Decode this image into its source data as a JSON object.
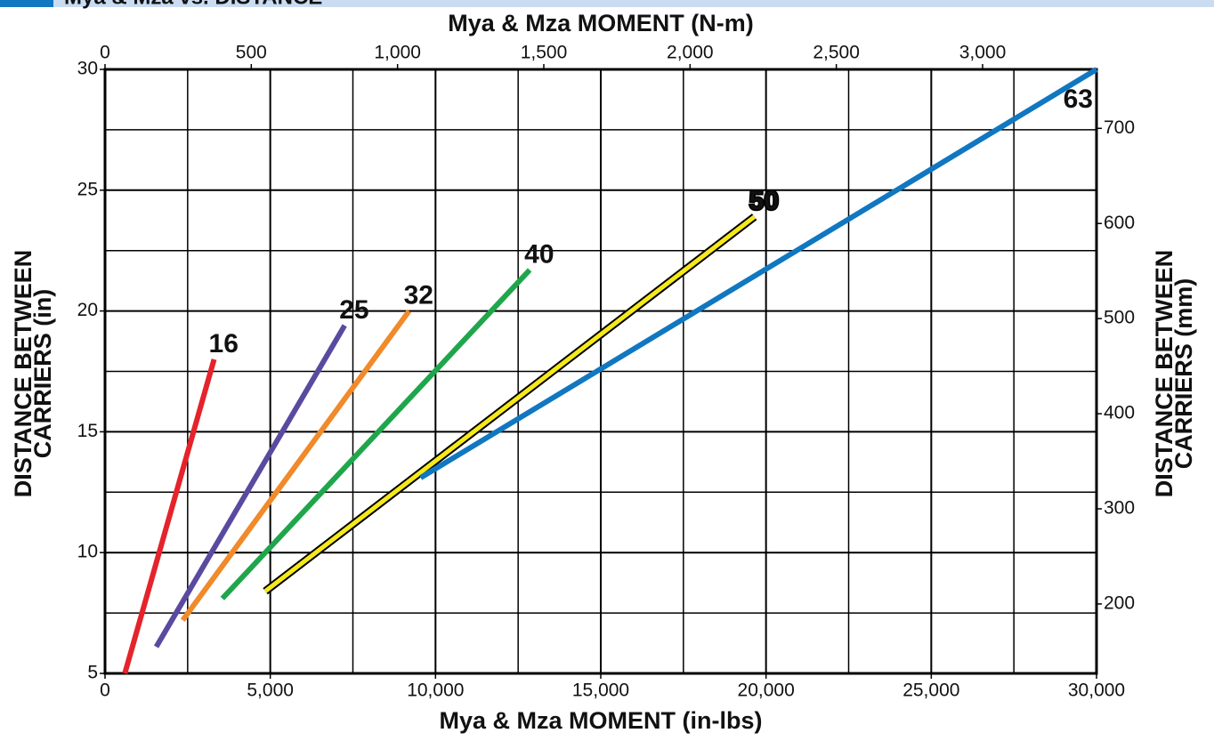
{
  "chart_data": {
    "type": "line",
    "title": "Mya & Mza vs. DISTANCE",
    "x_label": "Mya & Mza MOMENT (in-lbs)",
    "x2_label": "Mya & Mza MOMENT (N-m)",
    "y_label": [
      "DISTANCE BETWEEN",
      "CARRIERS (in)"
    ],
    "y2_label": [
      "DISTANCE BETWEEN",
      "CARRIERS (mm)"
    ],
    "xlim": [
      0,
      30000
    ],
    "xticks": [
      0,
      {
        "value": 5000,
        "label": "5,000"
      },
      {
        "value": 10000,
        "label": "10,000"
      },
      {
        "value": 15000,
        "label": "15,000"
      },
      {
        "value": 20000,
        "label": "20,000"
      },
      {
        "value": 25000,
        "label": "25,000"
      },
      {
        "value": 30000,
        "label": "30,000"
      }
    ],
    "x_minor_ticks": [
      2500,
      7500,
      12500,
      17500,
      22500,
      27500
    ],
    "ylim": [
      5,
      30
    ],
    "yticks": [
      5,
      10,
      15,
      20,
      25,
      30
    ],
    "y_minor_ticks": [
      7.5,
      12.5,
      17.5,
      22.5,
      27.5
    ],
    "x2lim": [
      0,
      3389.5
    ],
    "x2ticks": [
      0,
      500,
      {
        "value": 1000,
        "label": "1,000"
      },
      {
        "value": 1500,
        "label": "1,500"
      },
      {
        "value": 2000,
        "label": "2,000"
      },
      {
        "value": 2500,
        "label": "2,500"
      },
      {
        "value": 3000,
        "label": "3,000"
      }
    ],
    "y2lim": [
      127,
      762
    ],
    "y2ticks": [
      200,
      300,
      400,
      500,
      600,
      700
    ],
    "grid": true,
    "series": [
      {
        "name": "16",
        "color": "#e5232b",
        "x": [
          600,
          3300
        ],
        "values": [
          5,
          18
        ]
      },
      {
        "name": "25",
        "color": "#5a4a9f",
        "x": [
          1550,
          7250
        ],
        "values": [
          6.1,
          19.4
        ]
      },
      {
        "name": "32",
        "color": "#f08a2a",
        "x": [
          2350,
          9200
        ],
        "values": [
          7.2,
          20
        ]
      },
      {
        "name": "40",
        "color": "#1fa64b",
        "x": [
          3550,
          12850
        ],
        "values": [
          8.1,
          21.7
        ]
      },
      {
        "name": "50",
        "color": "#f6e91a",
        "x": [
          4850,
          19650
        ],
        "values": [
          8.4,
          23.9
        ]
      },
      {
        "name": "63",
        "color": "#1077c0",
        "x": [
          9550,
          30000
        ],
        "values": [
          13.1,
          30
        ]
      }
    ]
  }
}
